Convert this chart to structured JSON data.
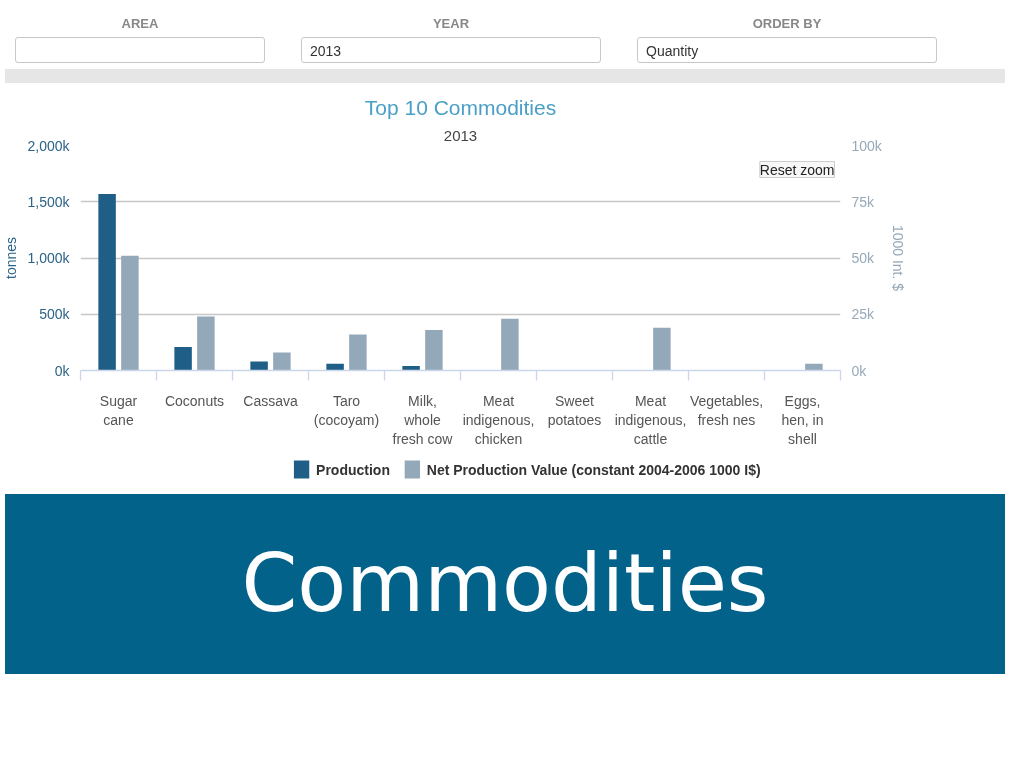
{
  "chart_data": {
    "type": "bar",
    "title": "Top 10 Commodities",
    "subtitle": "2013",
    "ylabel": "tonnes",
    "y2label": "1000 Int. $",
    "categories": [
      "Sugar cane",
      "Coconuts",
      "Cassava",
      "Taro (cocoyam)",
      "Milk, whole fresh cow",
      "Meat indigenous, chicken",
      "Sweet potatoes",
      "Meat indigenous, cattle",
      "Vegetables, fresh nes",
      "Eggs, hen, in shell"
    ],
    "series": [
      {
        "name": "Production",
        "color": "#1f5f87",
        "values": [
          1570000,
          210000,
          80000,
          60000,
          40000,
          null,
          null,
          null,
          null,
          null
        ]
      },
      {
        "name": "Net Production Value (constant 2004-2006 1000 I$)",
        "color": "#93a8b9",
        "axis": "y2",
        "values": [
          51000,
          24000,
          8000,
          16000,
          18000,
          23000,
          null,
          19000,
          null,
          3000
        ]
      }
    ],
    "ylim": [
      0,
      2000000
    ],
    "yticks": [
      {
        "value": 0,
        "label": "0k"
      },
      {
        "value": 500000,
        "label": "500k"
      },
      {
        "value": 1000000,
        "label": "1,000k"
      },
      {
        "value": 1500000,
        "label": "1,500k"
      },
      {
        "value": 2000000,
        "label": "2,000k"
      }
    ],
    "y2lim": [
      0,
      100000
    ],
    "y2ticks": [
      {
        "value": 0,
        "label": "0k"
      },
      {
        "value": 25000,
        "label": "25k"
      },
      {
        "value": 50000,
        "label": "50k"
      },
      {
        "value": 75000,
        "label": "75k"
      },
      {
        "value": 100000,
        "label": "100k"
      }
    ],
    "grid": "y",
    "legend": "bottom",
    "annotations": [
      "AREA",
      "YEAR",
      "2013",
      "ORDER BY",
      "Quantity",
      "Reset zoom",
      "Commodities"
    ]
  }
}
